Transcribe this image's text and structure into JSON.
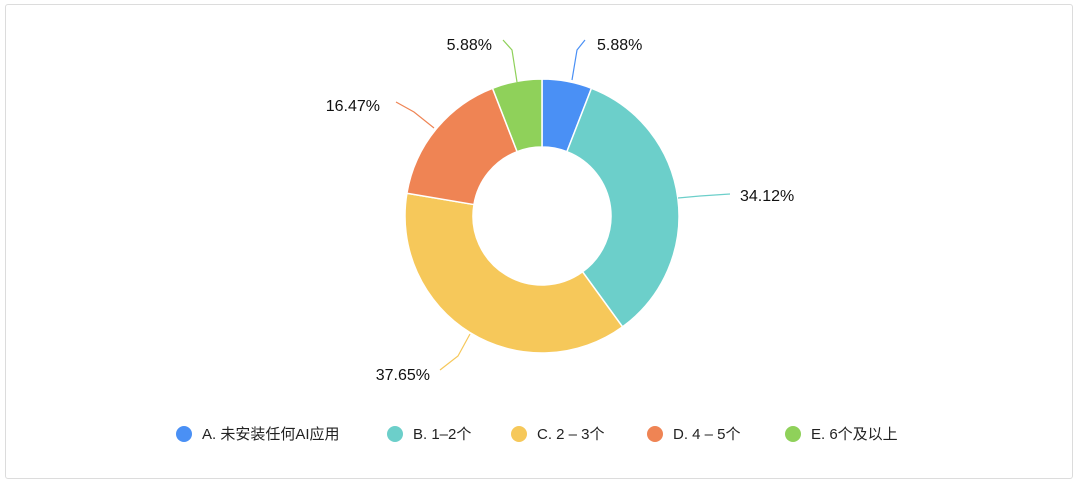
{
  "chart_data": {
    "type": "pie",
    "donut": true,
    "legend_position": "bottom",
    "slices": [
      {
        "name": "A. 未安装任何AI应用",
        "value": 5.88,
        "label": "5.88%",
        "color": "#4a90f5"
      },
      {
        "name": "B. 1–2个",
        "value": 34.12,
        "label": "34.12%",
        "color": "#6ccfca"
      },
      {
        "name": "C. 2 – 3个",
        "value": 37.65,
        "label": "37.65%",
        "color": "#f6c85a"
      },
      {
        "name": "D. 4 – 5个",
        "value": 16.47,
        "label": "16.47%",
        "color": "#ef8454"
      },
      {
        "name": "E. 6个及以上",
        "value": 5.88,
        "label": "5.88%",
        "color": "#8fd15a"
      }
    ]
  }
}
